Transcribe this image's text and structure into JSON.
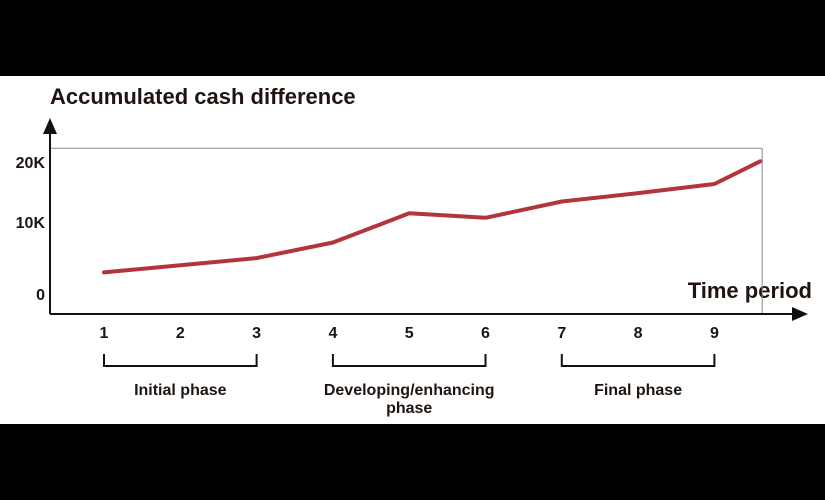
{
  "chart_data": {
    "type": "line",
    "ylabel": "Accumulated cash difference",
    "xlabel": "Time period",
    "y_ticks": [
      "0",
      "10K",
      "20K"
    ],
    "x_ticks": [
      "1",
      "2",
      "3",
      "4",
      "5",
      "6",
      "7",
      "8",
      "9"
    ],
    "ylim": [
      0,
      24000
    ],
    "xlim": [
      0.6,
      10.2
    ],
    "reference_level": 21500,
    "x": [
      1,
      2,
      3,
      4,
      5,
      6,
      7,
      8,
      9,
      9.6
    ],
    "values": [
      2400,
      3500,
      4600,
      7000,
      11500,
      10800,
      13300,
      14600,
      16000,
      19500
    ],
    "phases": [
      {
        "label": "Initial phase",
        "start": 1,
        "end": 3
      },
      {
        "label": "Developing/enhancing phase",
        "start": 4,
        "end": 6
      },
      {
        "label": "Final phase",
        "start": 7,
        "end": 9
      }
    ],
    "grid": false,
    "colors": {
      "line": "#b3353b",
      "axis": "#111111",
      "text": "#1f1410",
      "reference": "#888888"
    }
  }
}
